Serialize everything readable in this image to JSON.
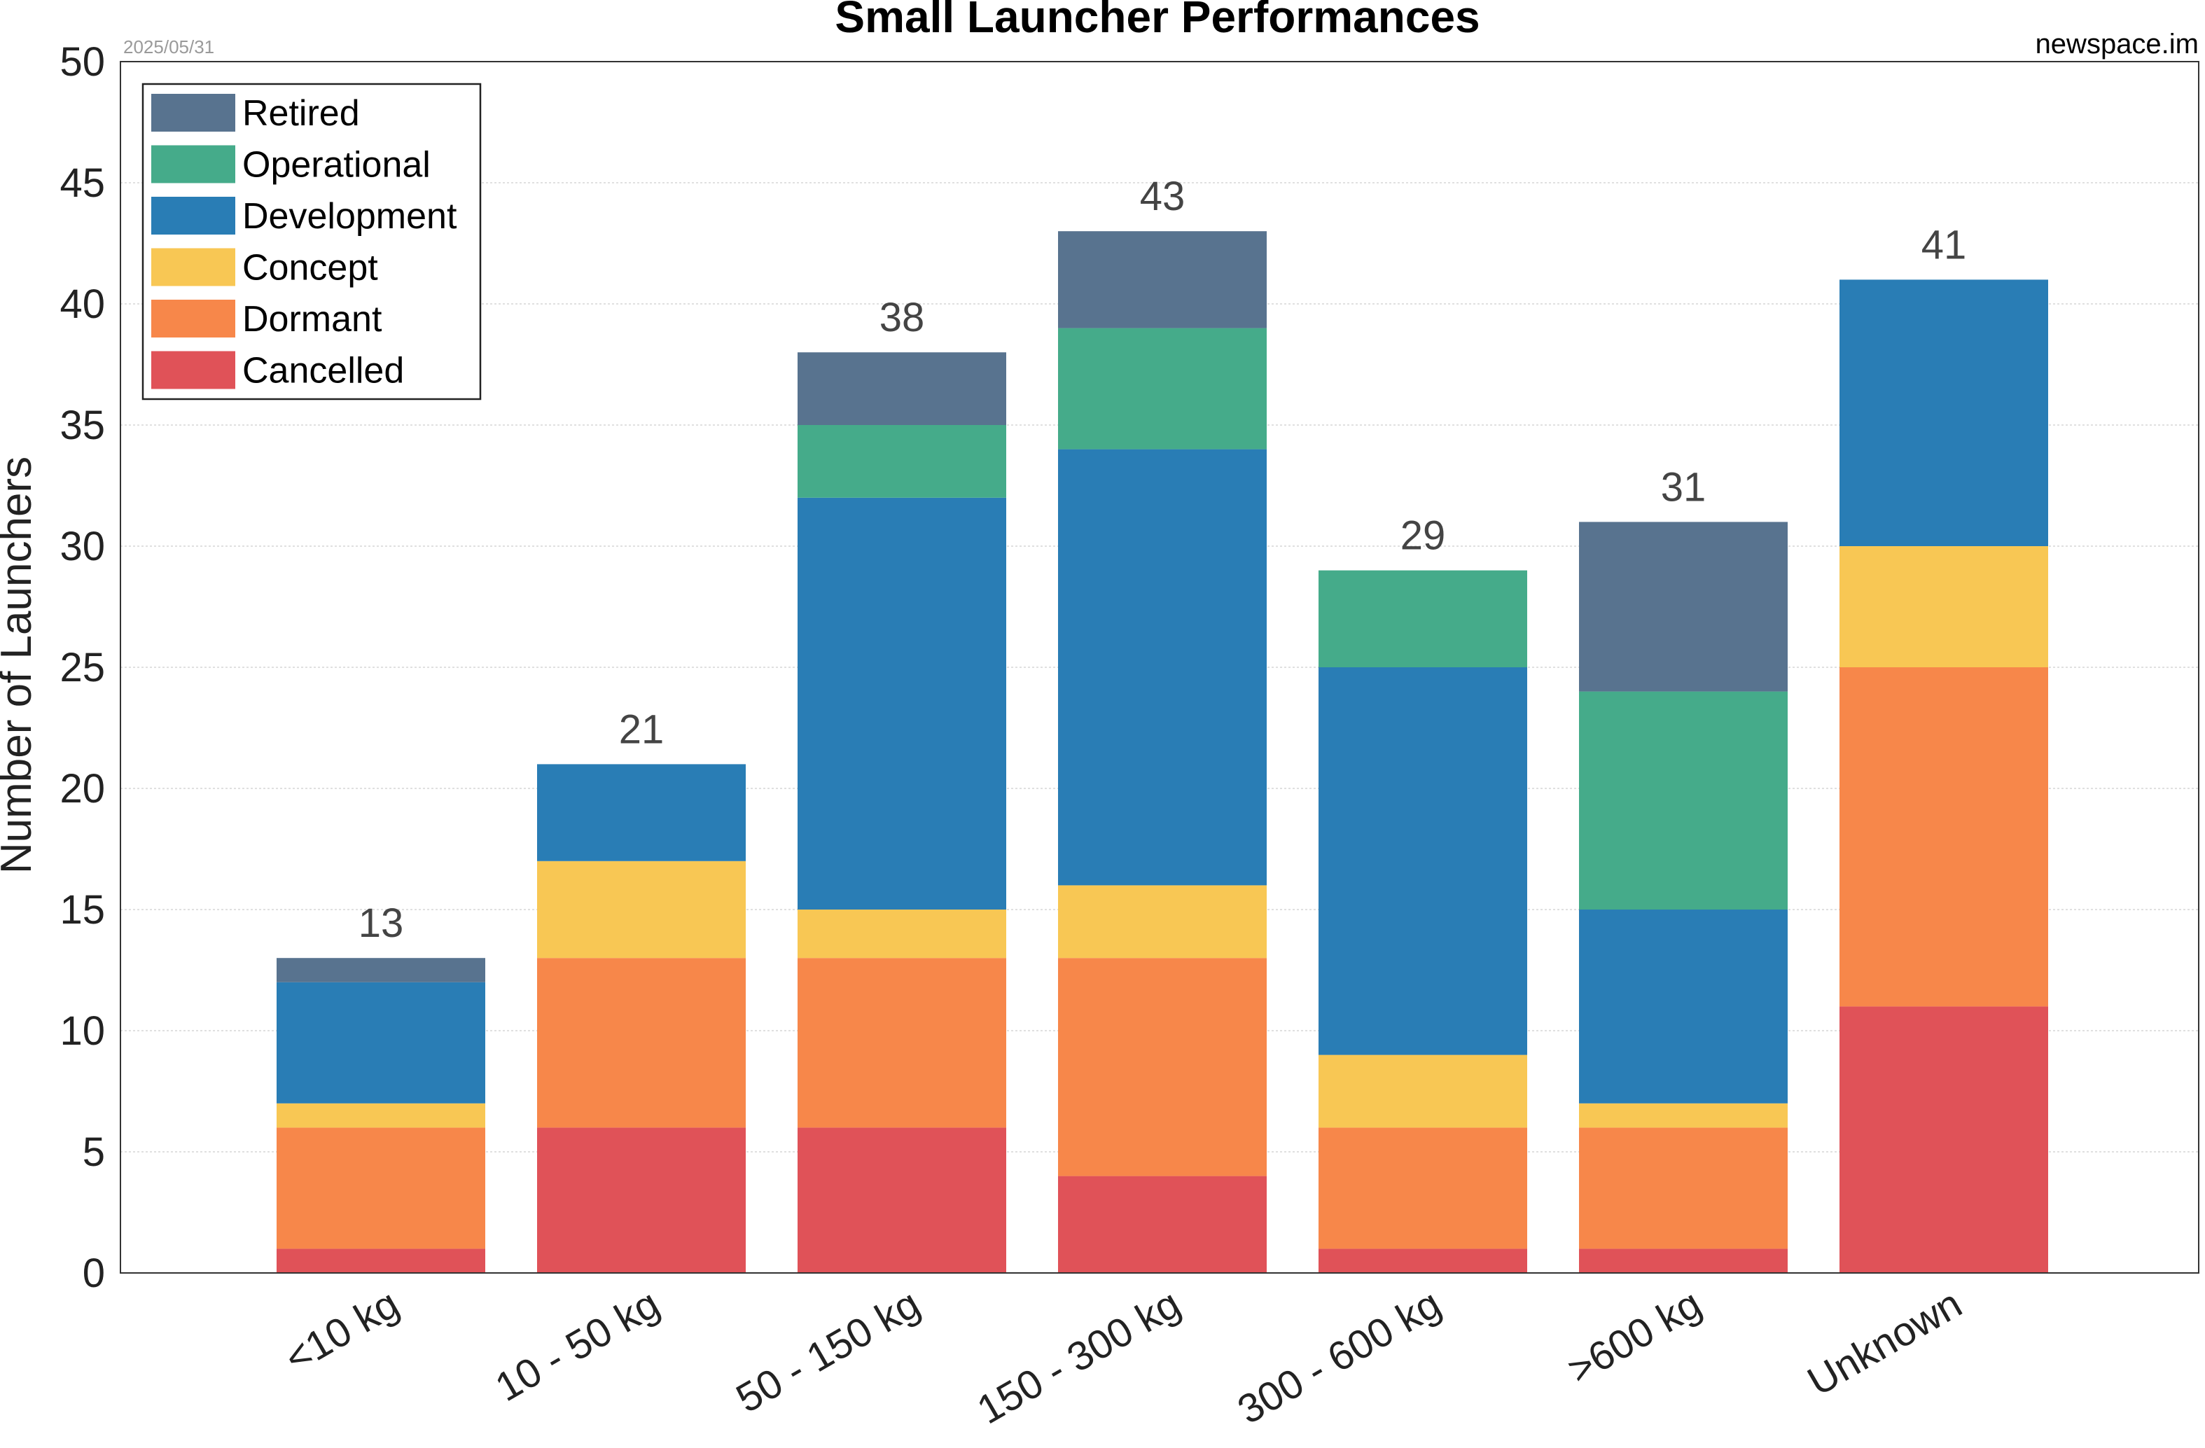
{
  "date_stamp": "2025/05/31",
  "source": "newspace.im",
  "chart_data": {
    "type": "bar",
    "stacked": true,
    "title": "Small Launcher Performances",
    "xlabel": "",
    "ylabel": "Number of Launchers",
    "ylim": [
      0,
      50
    ],
    "yticks": [
      0,
      5,
      10,
      15,
      20,
      25,
      30,
      35,
      40,
      45,
      50
    ],
    "grid": true,
    "legend_position": "top-left",
    "categories": [
      "<10 kg",
      "10 - 50 kg",
      "50 - 150 kg",
      "150 - 300 kg",
      "300 - 600 kg",
      ">600 kg",
      "Unknown"
    ],
    "totals": [
      13,
      21,
      38,
      43,
      29,
      31,
      41
    ],
    "series": [
      {
        "name": "Cancelled",
        "color": "#e05258",
        "values": [
          1,
          6,
          6,
          4,
          1,
          1,
          11
        ]
      },
      {
        "name": "Dormant",
        "color": "#f7874a",
        "values": [
          5,
          7,
          7,
          9,
          5,
          5,
          14
        ]
      },
      {
        "name": "Concept",
        "color": "#f8c754",
        "values": [
          1,
          4,
          2,
          3,
          3,
          1,
          5
        ]
      },
      {
        "name": "Development",
        "color": "#297db5",
        "values": [
          5,
          4,
          17,
          18,
          16,
          8,
          11
        ]
      },
      {
        "name": "Operational",
        "color": "#45ab8a",
        "values": [
          0,
          0,
          3,
          5,
          4,
          9,
          0
        ]
      },
      {
        "name": "Retired",
        "color": "#58738f",
        "values": [
          1,
          0,
          3,
          4,
          0,
          7,
          0
        ]
      }
    ],
    "legend_order": [
      "Retired",
      "Operational",
      "Development",
      "Concept",
      "Dormant",
      "Cancelled"
    ]
  }
}
